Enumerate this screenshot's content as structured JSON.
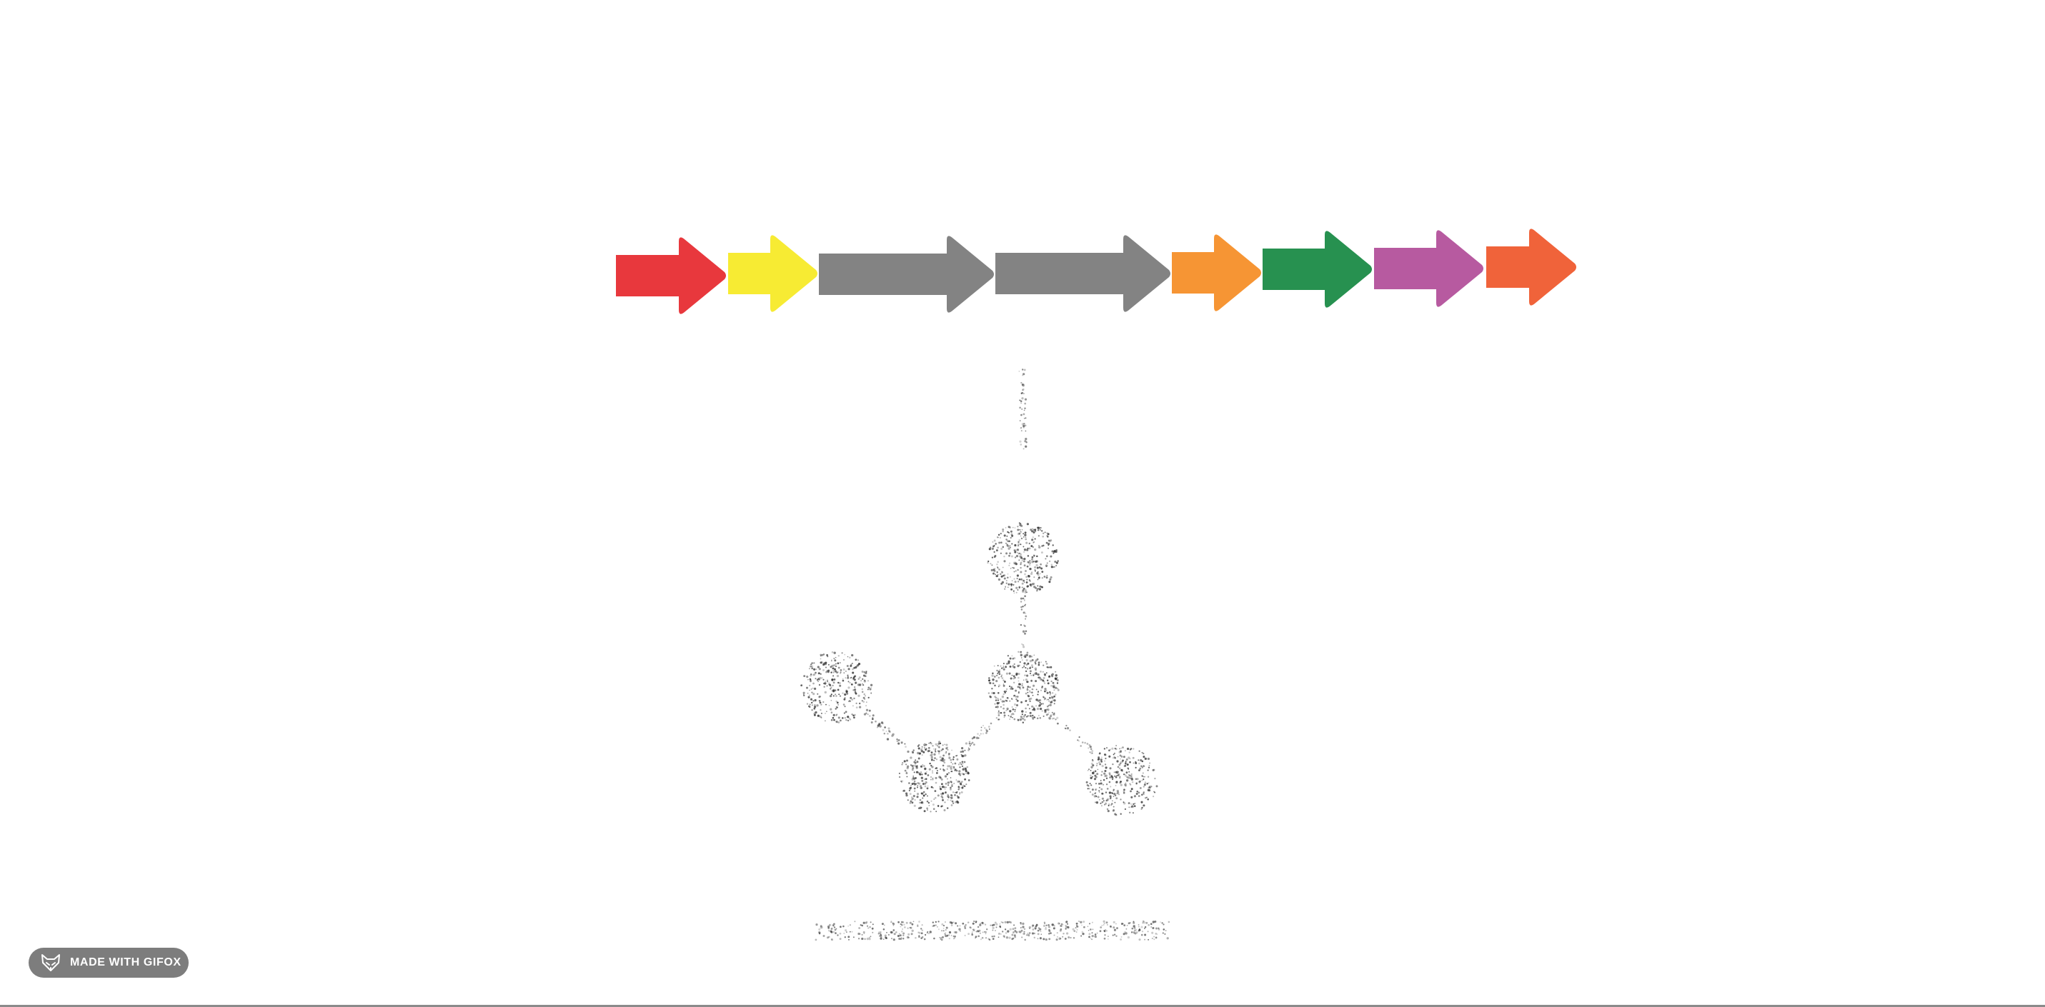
{
  "diagram": {
    "arrows": [
      {
        "color": "#e8383d"
      },
      {
        "color": "#f7eb33"
      },
      {
        "color": "#838383"
      },
      {
        "color": "#838383"
      },
      {
        "color": "#f69534"
      },
      {
        "color": "#279150"
      },
      {
        "color": "#b75aa0"
      },
      {
        "color": "#f0633a"
      }
    ]
  },
  "badge": {
    "label": "MADE WITH GIFOX",
    "icon": "fox-icon"
  }
}
